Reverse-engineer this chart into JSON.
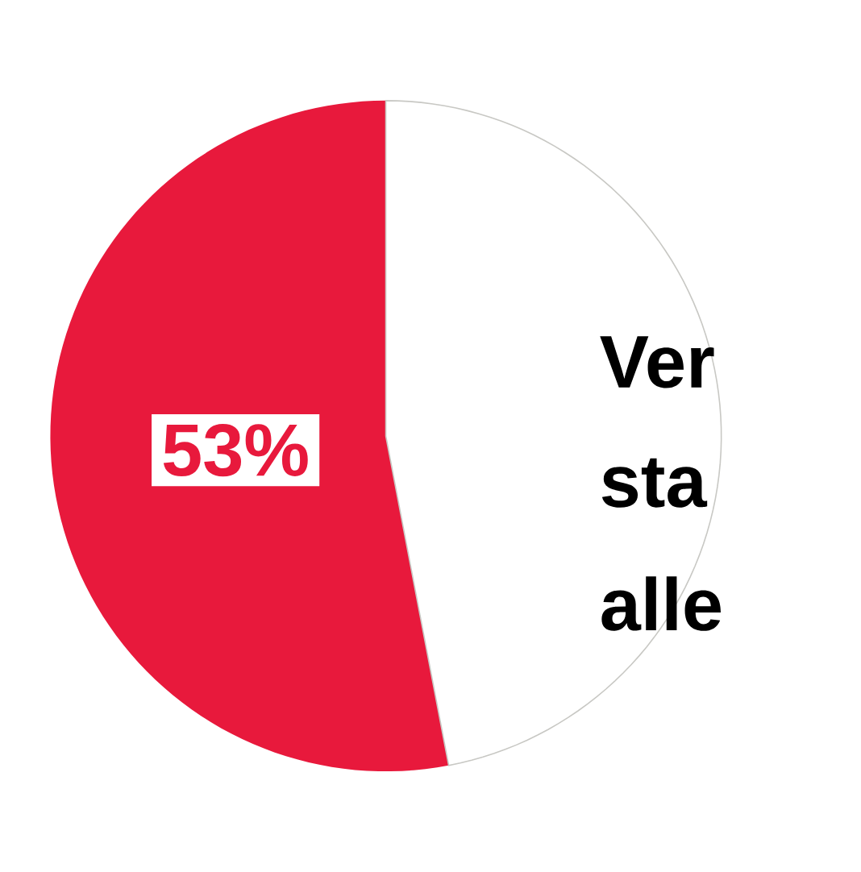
{
  "chart_data": {
    "type": "pie",
    "categories": [
      null,
      null
    ],
    "values": [
      53,
      47
    ],
    "colors": [
      "#e8193c",
      "#ffffff"
    ],
    "value_labels": [
      "53%",
      null
    ],
    "annotations": [
      "Ver",
      "sta",
      "alle"
    ]
  }
}
